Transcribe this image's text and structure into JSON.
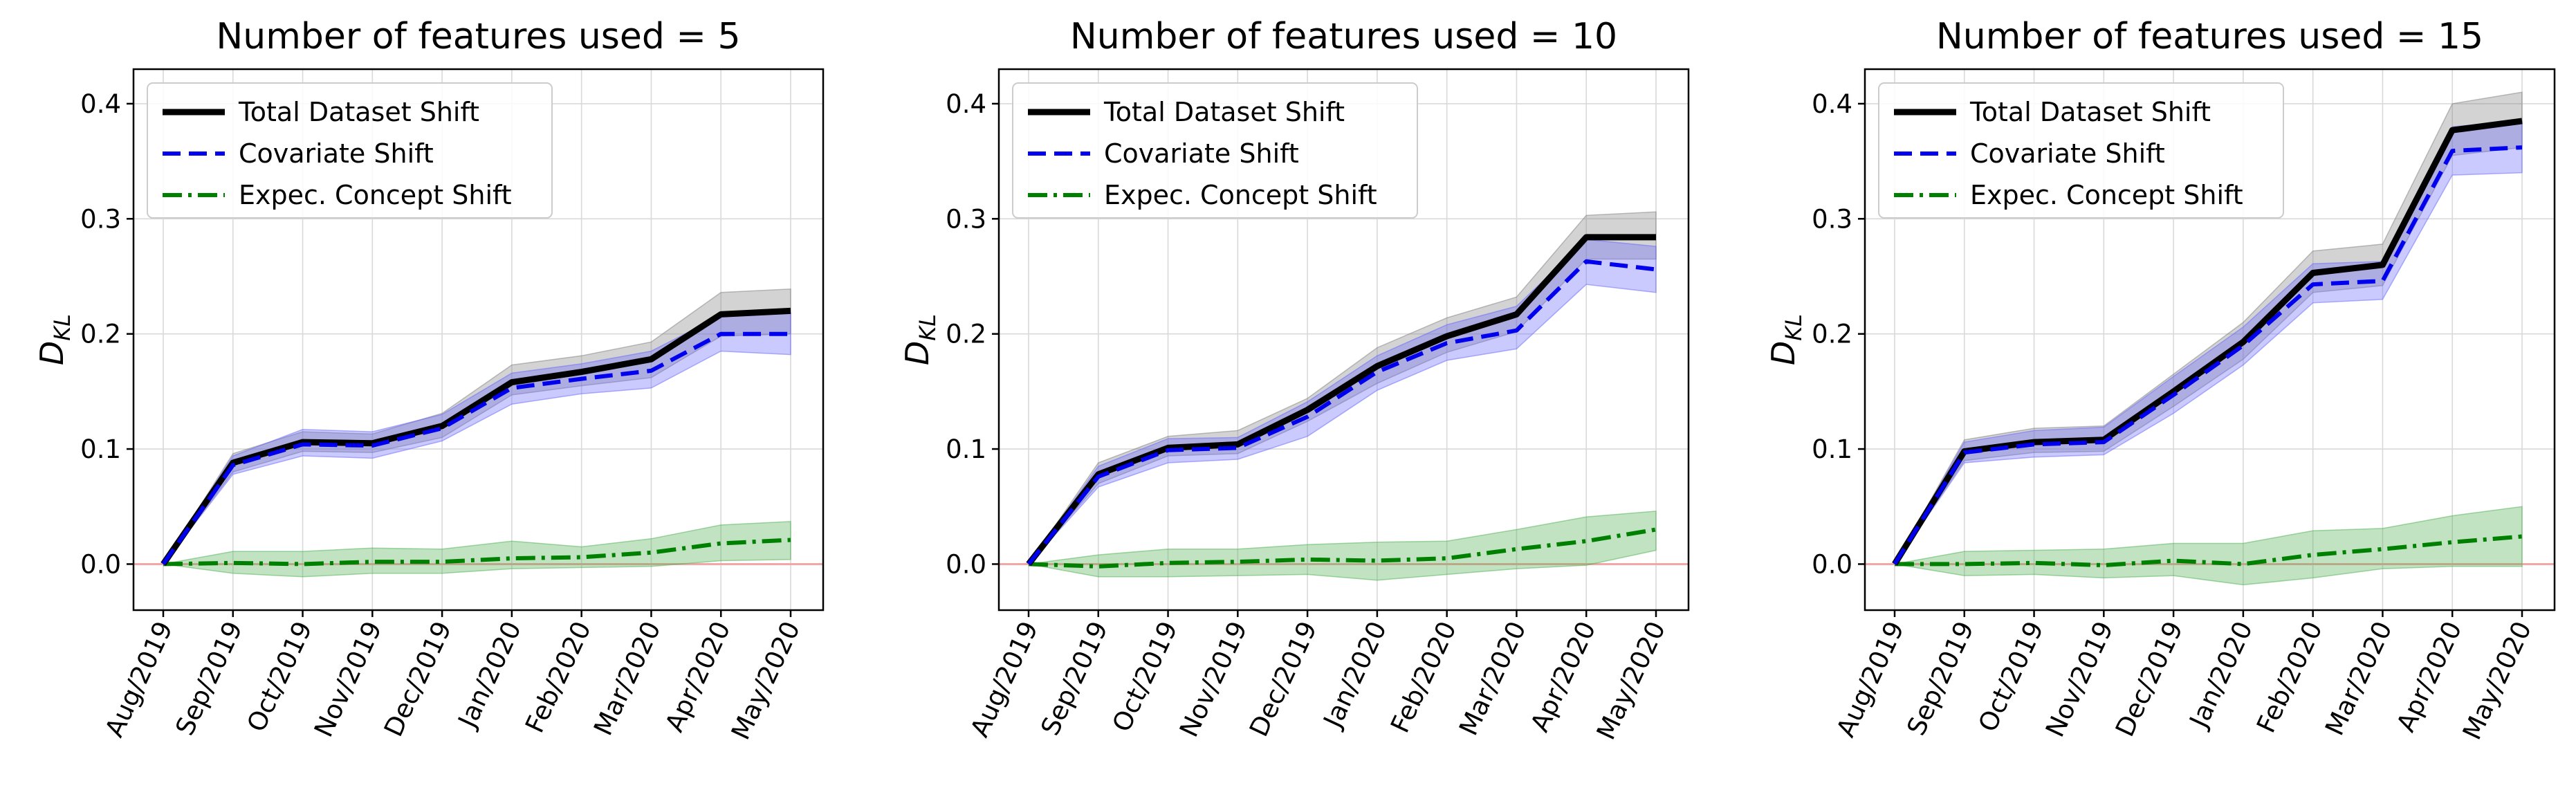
{
  "chart_data": [
    {
      "type": "line",
      "title": "Number of features used = 5",
      "ylabel": "D_KL",
      "ylabel_main": "D",
      "ylabel_sub": "KL",
      "ylim": [
        -0.04,
        0.43
      ],
      "yticks": [
        "0.0",
        "0.1",
        "0.2",
        "0.3",
        "0.4"
      ],
      "ytick_values": [
        0.0,
        0.1,
        0.2,
        0.3,
        0.4
      ],
      "x": [
        "Aug/2019",
        "Sep/2019",
        "Oct/2019",
        "Nov/2019",
        "Dec/2019",
        "Jan/2020",
        "Feb/2020",
        "Mar/2020",
        "Apr/2020",
        "May/2020"
      ],
      "grid": true,
      "legend_position": "top-left",
      "reference_line": {
        "y": 0.0,
        "color": "#f4a6a6"
      },
      "series": [
        {
          "name": "Total Dataset Shift",
          "style": "solid",
          "color": "#000000",
          "band_color": "#808080",
          "values": [
            0.0,
            0.088,
            0.106,
            0.105,
            0.12,
            0.158,
            0.167,
            0.178,
            0.217,
            0.22
          ],
          "lower": [
            0.0,
            0.08,
            0.098,
            0.097,
            0.11,
            0.147,
            0.155,
            0.162,
            0.198,
            0.2
          ],
          "upper": [
            0.0,
            0.096,
            0.115,
            0.113,
            0.131,
            0.173,
            0.181,
            0.193,
            0.236,
            0.239
          ]
        },
        {
          "name": "Covariate Shift",
          "style": "dashed",
          "color": "#0000ee",
          "band_color": "#6666ff",
          "values": [
            0.0,
            0.086,
            0.104,
            0.103,
            0.118,
            0.153,
            0.161,
            0.168,
            0.2,
            0.2
          ],
          "lower": [
            0.0,
            0.078,
            0.094,
            0.092,
            0.107,
            0.139,
            0.148,
            0.153,
            0.185,
            0.182
          ],
          "upper": [
            0.0,
            0.094,
            0.117,
            0.115,
            0.13,
            0.166,
            0.174,
            0.185,
            0.216,
            0.218
          ]
        },
        {
          "name": "Expec. Concept Shift",
          "style": "dashdot",
          "color": "#008000",
          "band_color": "#4caf50",
          "values": [
            0.0,
            0.001,
            0.0,
            0.002,
            0.002,
            0.005,
            0.006,
            0.01,
            0.018,
            0.021
          ],
          "lower": [
            0.0,
            -0.008,
            -0.011,
            -0.008,
            -0.008,
            -0.004,
            -0.003,
            -0.002,
            0.003,
            0.004
          ],
          "upper": [
            0.0,
            0.011,
            0.011,
            0.014,
            0.013,
            0.02,
            0.015,
            0.022,
            0.034,
            0.037
          ]
        }
      ]
    },
    {
      "type": "line",
      "title": "Number of features used = 10",
      "ylabel": "D_KL",
      "ylabel_main": "D",
      "ylabel_sub": "KL",
      "ylim": [
        -0.04,
        0.43
      ],
      "yticks": [
        "0.0",
        "0.1",
        "0.2",
        "0.3",
        "0.4"
      ],
      "ytick_values": [
        0.0,
        0.1,
        0.2,
        0.3,
        0.4
      ],
      "x": [
        "Aug/2019",
        "Sep/2019",
        "Oct/2019",
        "Nov/2019",
        "Dec/2019",
        "Jan/2020",
        "Feb/2020",
        "Mar/2020",
        "Apr/2020",
        "May/2020"
      ],
      "grid": true,
      "legend_position": "top-left",
      "reference_line": {
        "y": 0.0,
        "color": "#f4a6a6"
      },
      "series": [
        {
          "name": "Total Dataset Shift",
          "style": "solid",
          "color": "#000000",
          "band_color": "#808080",
          "values": [
            0.0,
            0.078,
            0.101,
            0.104,
            0.134,
            0.172,
            0.198,
            0.217,
            0.284,
            0.284
          ],
          "lower": [
            0.0,
            0.07,
            0.094,
            0.096,
            0.124,
            0.157,
            0.184,
            0.202,
            0.265,
            0.265
          ],
          "upper": [
            0.0,
            0.088,
            0.111,
            0.116,
            0.144,
            0.188,
            0.214,
            0.232,
            0.303,
            0.306
          ]
        },
        {
          "name": "Covariate Shift",
          "style": "dashed",
          "color": "#0000ee",
          "band_color": "#6666ff",
          "values": [
            0.0,
            0.076,
            0.099,
            0.101,
            0.128,
            0.167,
            0.192,
            0.203,
            0.263,
            0.256
          ],
          "lower": [
            0.0,
            0.067,
            0.088,
            0.091,
            0.111,
            0.151,
            0.177,
            0.187,
            0.243,
            0.236
          ],
          "upper": [
            0.0,
            0.085,
            0.109,
            0.11,
            0.141,
            0.181,
            0.208,
            0.224,
            0.282,
            0.276
          ]
        },
        {
          "name": "Expec. Concept Shift",
          "style": "dashdot",
          "color": "#008000",
          "band_color": "#4caf50",
          "values": [
            0.0,
            -0.002,
            0.001,
            0.002,
            0.004,
            0.003,
            0.005,
            0.013,
            0.02,
            0.03
          ],
          "lower": [
            0.0,
            -0.011,
            -0.011,
            -0.01,
            -0.009,
            -0.014,
            -0.009,
            -0.004,
            -0.001,
            0.012
          ],
          "upper": [
            0.0,
            0.008,
            0.013,
            0.013,
            0.017,
            0.019,
            0.02,
            0.03,
            0.041,
            0.046
          ]
        }
      ]
    },
    {
      "type": "line",
      "title": "Number of features used = 15",
      "ylabel": "D_KL",
      "ylabel_main": "D",
      "ylabel_sub": "KL",
      "ylim": [
        -0.04,
        0.43
      ],
      "yticks": [
        "0.0",
        "0.1",
        "0.2",
        "0.3",
        "0.4"
      ],
      "ytick_values": [
        0.0,
        0.1,
        0.2,
        0.3,
        0.4
      ],
      "x": [
        "Aug/2019",
        "Sep/2019",
        "Oct/2019",
        "Nov/2019",
        "Dec/2019",
        "Jan/2020",
        "Feb/2020",
        "Mar/2020",
        "Apr/2020",
        "May/2020"
      ],
      "grid": true,
      "legend_position": "top-left",
      "reference_line": {
        "y": 0.0,
        "color": "#f4a6a6"
      },
      "series": [
        {
          "name": "Total Dataset Shift",
          "style": "solid",
          "color": "#000000",
          "band_color": "#808080",
          "values": [
            0.0,
            0.098,
            0.106,
            0.108,
            0.15,
            0.193,
            0.253,
            0.26,
            0.377,
            0.385
          ],
          "lower": [
            0.0,
            0.09,
            0.097,
            0.098,
            0.137,
            0.178,
            0.236,
            0.242,
            0.355,
            0.362
          ],
          "upper": [
            0.0,
            0.108,
            0.118,
            0.12,
            0.165,
            0.21,
            0.272,
            0.278,
            0.4,
            0.41
          ]
        },
        {
          "name": "Covariate Shift",
          "style": "dashed",
          "color": "#0000ee",
          "band_color": "#6666ff",
          "values": [
            0.0,
            0.097,
            0.104,
            0.106,
            0.147,
            0.19,
            0.243,
            0.246,
            0.359,
            0.362
          ],
          "lower": [
            0.0,
            0.088,
            0.093,
            0.095,
            0.131,
            0.173,
            0.227,
            0.23,
            0.338,
            0.34
          ],
          "upper": [
            0.0,
            0.106,
            0.116,
            0.119,
            0.163,
            0.206,
            0.261,
            0.263,
            0.38,
            0.385
          ]
        },
        {
          "name": "Expec. Concept Shift",
          "style": "dashdot",
          "color": "#008000",
          "band_color": "#4caf50",
          "values": [
            0.0,
            0.0,
            0.001,
            -0.001,
            0.003,
            0.0,
            0.008,
            0.013,
            0.019,
            0.024
          ],
          "lower": [
            0.0,
            -0.01,
            -0.009,
            -0.012,
            -0.01,
            -0.018,
            -0.012,
            -0.004,
            -0.002,
            -0.002
          ],
          "upper": [
            0.0,
            0.011,
            0.012,
            0.013,
            0.018,
            0.018,
            0.029,
            0.031,
            0.042,
            0.05
          ]
        }
      ]
    }
  ]
}
